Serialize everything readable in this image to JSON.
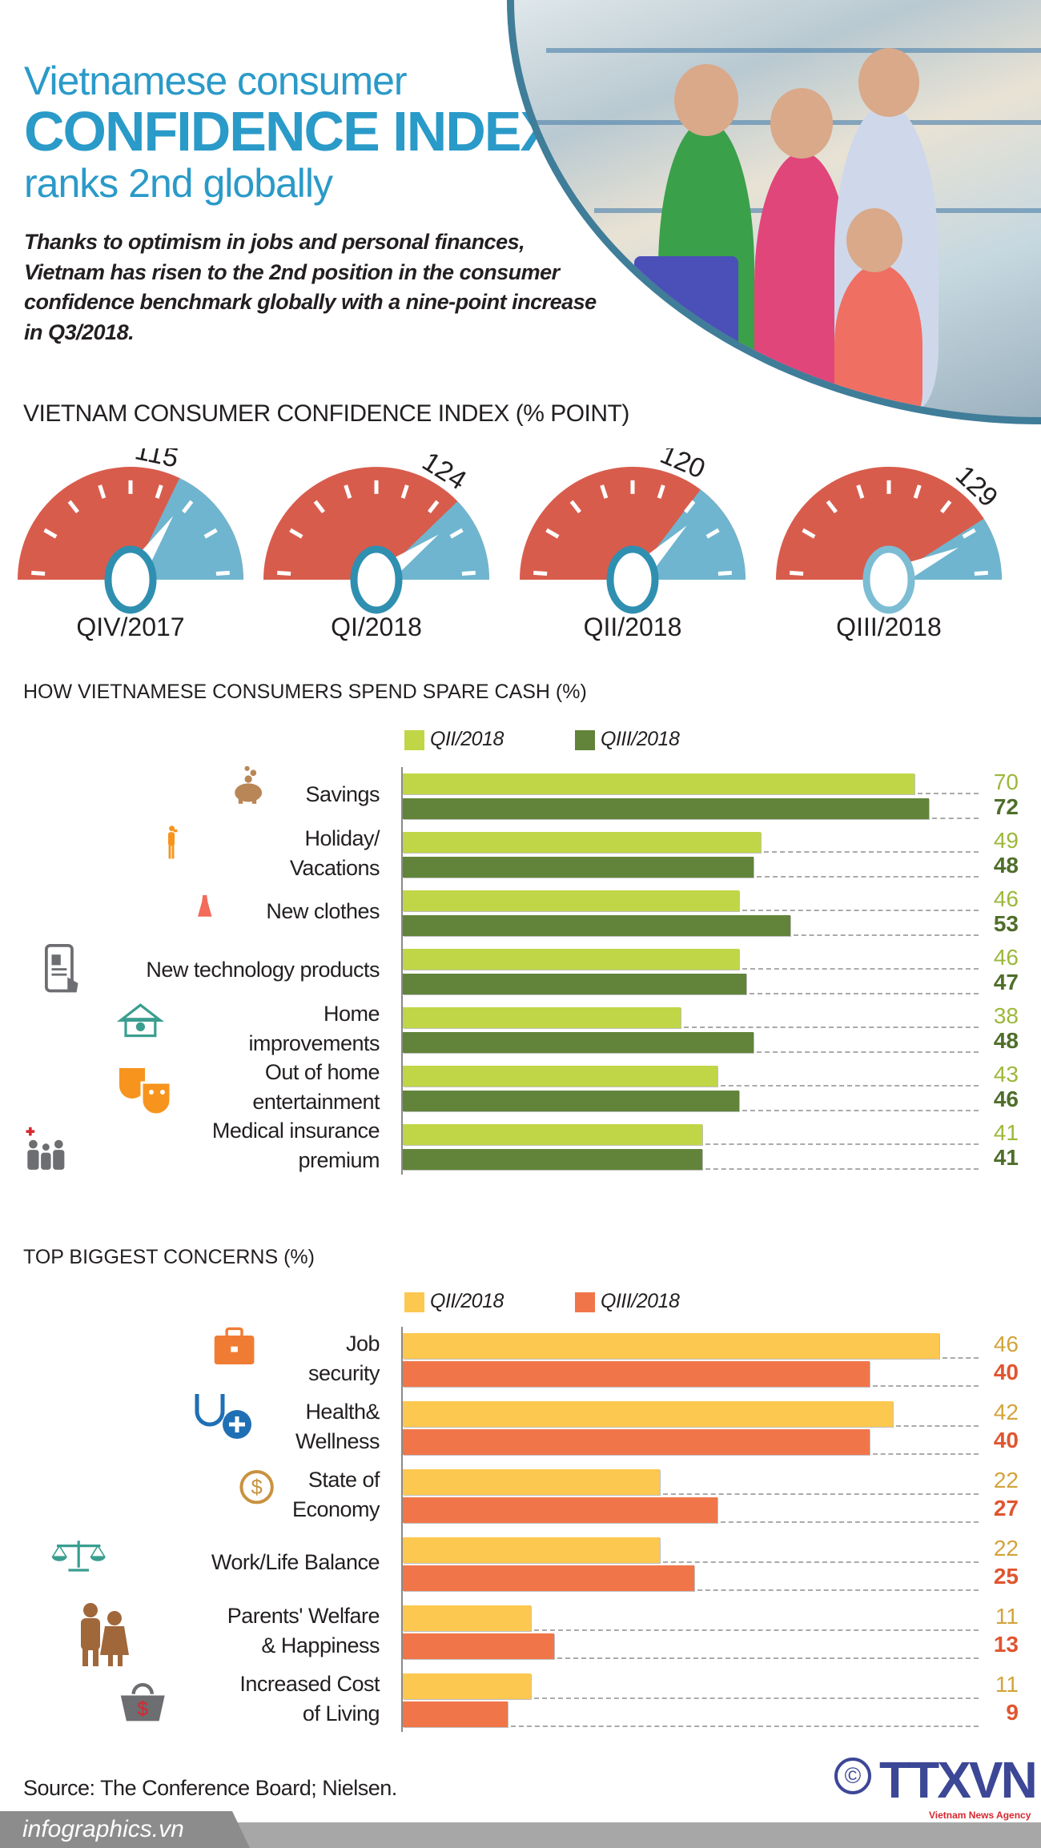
{
  "header": {
    "title_line1": "Vietnamese consumer",
    "title_line2": "CONFIDENCE INDEX",
    "title_line3": "ranks 2nd globally",
    "intro": "Thanks to optimism in jobs and personal finances, Vietnam has risen to the 2nd position in the consumer confidence benchmark globally with a nine-point increase in Q3/2018."
  },
  "colors": {
    "title_blue": "#2a9ac8",
    "gauge_red": "#d85c4c",
    "gauge_blue": "#6fb5cf",
    "green_light": "#c1d646",
    "green_dark": "#62843a",
    "yellow": "#fdc84f",
    "orange": "#f0764a"
  },
  "gauges": {
    "title": "VIETNAM CONSUMER CONFIDENCE INDEX (% POINT)",
    "items": [
      {
        "label": "QIV/2017",
        "value": "115"
      },
      {
        "label": "QI/2018",
        "value": "124"
      },
      {
        "label": "QII/2018",
        "value": "120"
      },
      {
        "label": "QIII/2018",
        "value": "129"
      }
    ]
  },
  "chart_data": [
    {
      "type": "bar",
      "orientation": "horizontal",
      "title": "HOW VIETNAMESE CONSUMERS SPEND SPARE CASH  (%)",
      "legend_position": "top",
      "categories": [
        "Savings",
        "Holiday/\nVacations",
        "New clothes",
        "New technology products",
        "Home\nimprovements",
        "Out of home\nentertainment",
        "Medical insurance\npremium"
      ],
      "icons": [
        "piggy-bank-icon",
        "traveler-icon",
        "dress-icon",
        "smartphone-icon",
        "home-gear-icon",
        "theater-masks-icon",
        "family-medical-icon"
      ],
      "series": [
        {
          "name": "QII/2018",
          "color": "#c1d646",
          "value_color": "#9cb83a",
          "values": [
            70,
            49,
            46,
            46,
            38,
            43,
            41
          ]
        },
        {
          "name": "QIII/2018",
          "color": "#62843a",
          "value_color": "#4f6e2a",
          "values": [
            72,
            48,
            53,
            47,
            48,
            46,
            41
          ]
        }
      ]
    },
    {
      "type": "bar",
      "orientation": "horizontal",
      "title": "TOP BIGGEST CONCERNS (%)",
      "legend_position": "top",
      "categories": [
        "Job\nsecurity",
        "Health&\nWellness",
        "State of\nEconomy",
        "Work/Life Balance",
        "Parents' Welfare\n& Happiness",
        "Increased Cost\nof Living"
      ],
      "icons": [
        "briefcase-icon",
        "stethoscope-icon",
        "dollar-coin-icon",
        "balance-scale-icon",
        "elderly-couple-icon",
        "shopping-basket-icon"
      ],
      "series": [
        {
          "name": "QII/2018",
          "color": "#fdc84f",
          "value_color": "#d2a43a",
          "values": [
            46,
            42,
            22,
            22,
            11,
            11
          ]
        },
        {
          "name": "QIII/2018",
          "color": "#f0764a",
          "value_color": "#e0552f",
          "values": [
            40,
            40,
            27,
            25,
            13,
            9
          ]
        }
      ]
    }
  ],
  "footer": {
    "source": "Source: The Conference Board; Nielsen.",
    "site": "infographics.vn",
    "copyright": "©",
    "logo": "TTXVN",
    "agency": "Vietnam News Agency"
  }
}
